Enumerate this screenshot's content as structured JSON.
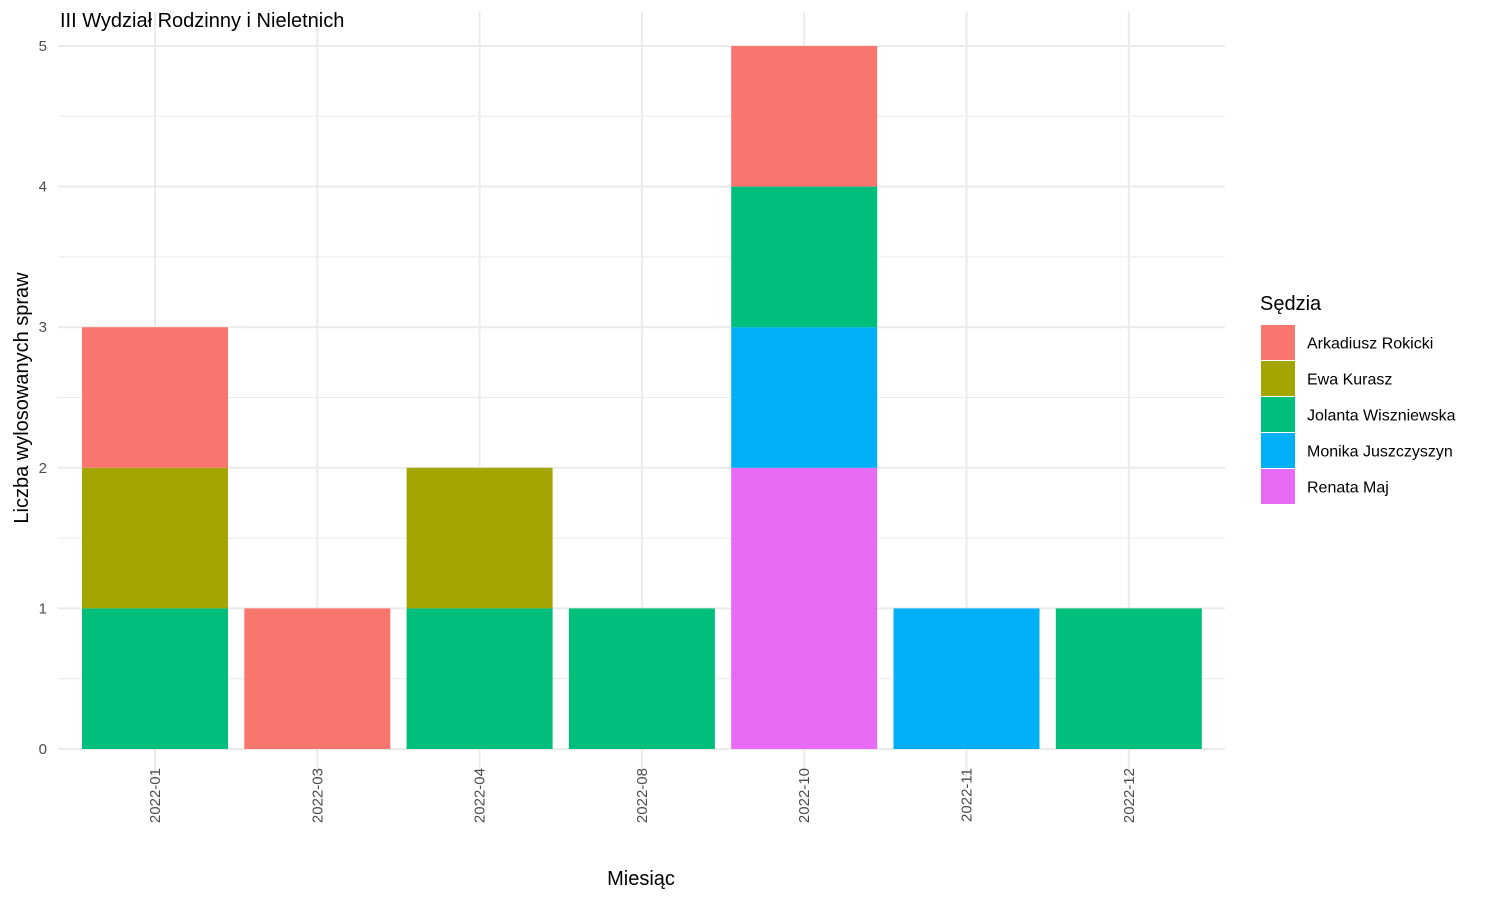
{
  "chart_data": {
    "type": "bar",
    "stacked": true,
    "title": "III Wydział Rodzinny i Nieletnich",
    "xlabel": "Miesiąc",
    "ylabel": "Liczba wylosowanych spraw",
    "categories": [
      "2022-01",
      "2022-03",
      "2022-04",
      "2022-08",
      "2022-10",
      "2022-11",
      "2022-12"
    ],
    "ylim": [
      0,
      5
    ],
    "yticks": [
      0,
      1,
      2,
      3,
      4,
      5
    ],
    "grid": true,
    "legend": {
      "title": "Sędzia",
      "position": "right"
    },
    "series": [
      {
        "name": "Arkadiusz Rokicki",
        "color": "#F8766D",
        "values": [
          1,
          1,
          0,
          0,
          1,
          0,
          0
        ]
      },
      {
        "name": "Ewa Kurasz",
        "color": "#A3A500",
        "values": [
          1,
          0,
          1,
          0,
          0,
          0,
          0
        ]
      },
      {
        "name": "Jolanta Wiszniewska",
        "color": "#00BF7D",
        "values": [
          1,
          0,
          1,
          1,
          1,
          0,
          1
        ]
      },
      {
        "name": "Monika Juszczyszyn",
        "color": "#00B0F6",
        "values": [
          0,
          0,
          0,
          0,
          1,
          1,
          0
        ]
      },
      {
        "name": "Renata Maj",
        "color": "#E76BF3",
        "values": [
          0,
          0,
          0,
          0,
          2,
          0,
          0
        ]
      }
    ]
  }
}
